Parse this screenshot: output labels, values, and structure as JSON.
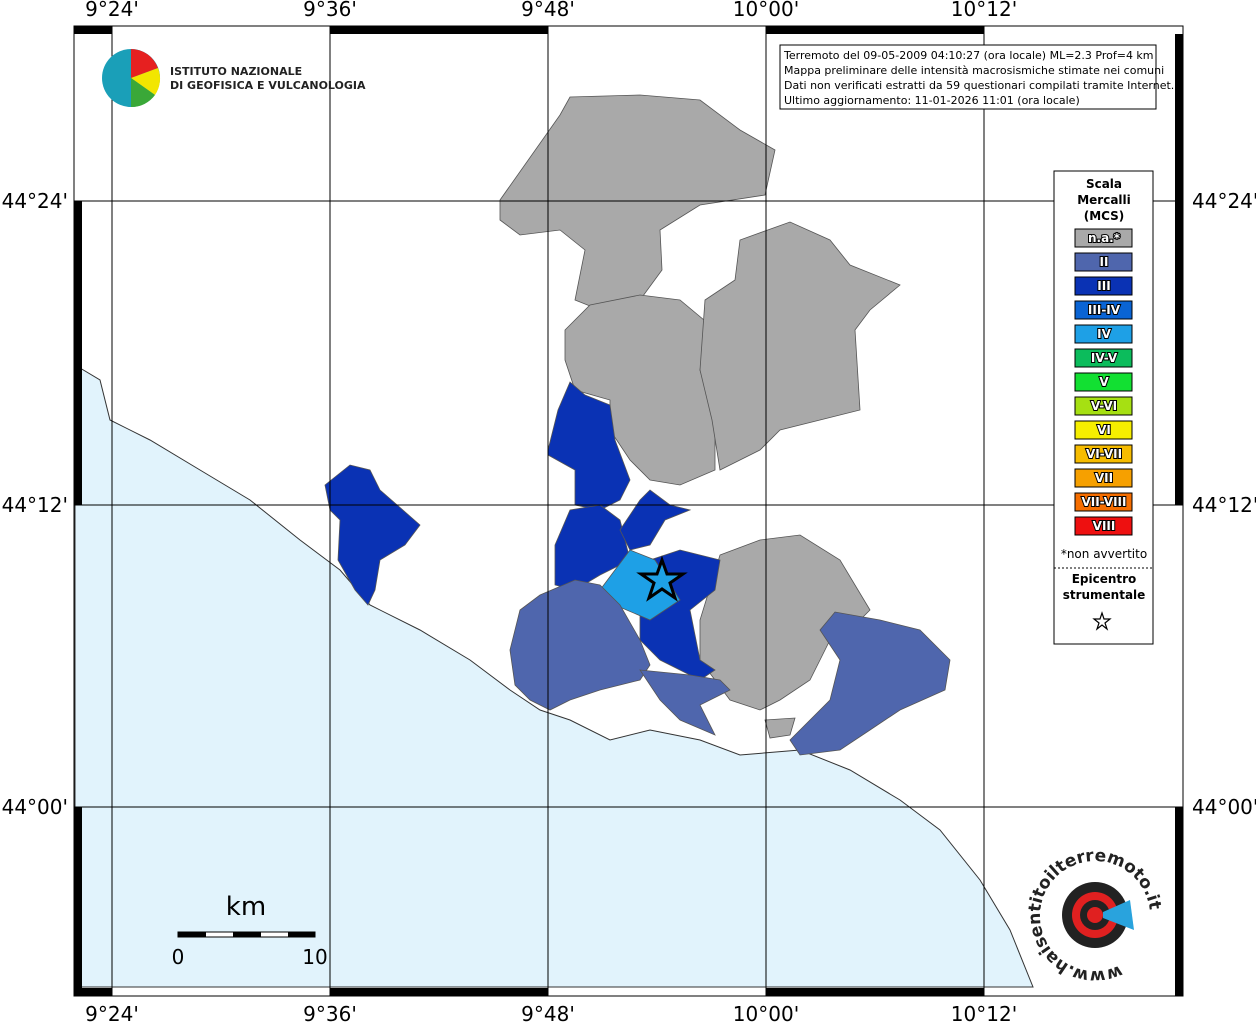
{
  "header": {
    "logo_lines": [
      "ISTITUTO NAZIONALE",
      "DI GEOFISICA E VULCANOLOGIA"
    ]
  },
  "info_lines": [
    "Terremoto del 09-05-2009 04:10:27 (ora locale) ML=2.3 Prof=4 km",
    "Mappa preliminare delle intensità macrosismiche stimate nei comuni",
    "Dati non verificati estratti da 59 questionari compilati tramite Internet.",
    "Ultimo aggiornamento: 11-01-2026 11:01 (ora locale)"
  ],
  "longitude_labels": [
    "9°24'",
    "9°36'",
    "9°48'",
    "10°00'",
    "10°12'"
  ],
  "latitude_labels": [
    "44°24'",
    "44°12'",
    "44°00'"
  ],
  "legend": {
    "title_lines": [
      "Scala",
      "Mercalli",
      "(MCS)"
    ],
    "items": [
      {
        "label": "n.a.*",
        "color": "#a9a9a9"
      },
      {
        "label": "II",
        "color": "#4f66ad"
      },
      {
        "label": "III",
        "color": "#0a32b4"
      },
      {
        "label": "III-IV",
        "color": "#0a64d4"
      },
      {
        "label": "IV",
        "color": "#1ea0e6"
      },
      {
        "label": "IV-V",
        "color": "#0cbc5c"
      },
      {
        "label": "V",
        "color": "#12e032"
      },
      {
        "label": "V-VI",
        "color": "#a6e012"
      },
      {
        "label": "VI",
        "color": "#f6ee00"
      },
      {
        "label": "VI-VII",
        "color": "#f6bc00"
      },
      {
        "label": "VII",
        "color": "#f6a000"
      },
      {
        "label": "VII-VIII",
        "color": "#f66e00"
      },
      {
        "label": "VIII",
        "color": "#ee1010"
      }
    ],
    "note": "*non avvertito",
    "epicenter_lines": [
      "Epicentro",
      "strumentale"
    ]
  },
  "scale_bar": {
    "unit": "km",
    "start": "0",
    "end": "10"
  },
  "site_logo": "www.haisentitoilterremoto.it"
}
